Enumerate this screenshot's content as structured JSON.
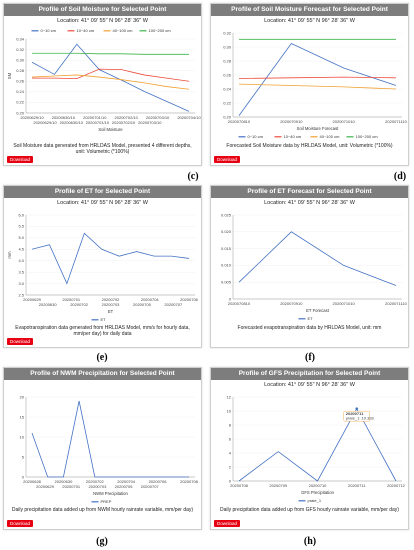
{
  "panels": [
    {
      "id": "c",
      "title": "Profile of Soil Moisture for Selected Point",
      "location": "Location: 41° 09' 55\" N 96° 28' 36\" W",
      "caption": "Soil Moisture data generated from HRLDAS Model, presented 4 different depths, unit: Volumetric (*100%)",
      "download_label": "Download",
      "letter": "(c)",
      "chart_data": {
        "type": "line",
        "xlabel": "Soil Moisture",
        "ylabel": "SM",
        "x_ticks_top": [
          "20200629/10",
          "20200630/10",
          "20200701/10",
          "20200702/10",
          "20200703/10",
          "20200704/10"
        ],
        "x_ticks_bottom": [
          "20200629/10",
          "20200630/10",
          "20200701/10",
          "20200702/10",
          "20200703/10"
        ],
        "ylim": [
          0.2,
          0.34
        ],
        "yticks": [
          "0.34",
          "0.32",
          "0.30",
          "0.28",
          "0.26",
          "0.24",
          "0.22",
          "0.20"
        ],
        "legend": "top",
        "series": [
          {
            "name": "0~10 cm",
            "color": "#4472c4",
            "values": [
              0.296,
              0.273,
              0.33,
              0.282,
              0.262,
              0.241,
              0.222,
              0.203
            ]
          },
          {
            "name": "10~40 cm",
            "color": "#ed4b3c",
            "values": [
              0.266,
              0.266,
              0.265,
              0.283,
              0.282,
              0.272,
              0.266,
              0.26
            ]
          },
          {
            "name": "40~100 cm",
            "color": "#f0a030",
            "values": [
              0.268,
              0.27,
              0.272,
              0.268,
              0.263,
              0.257,
              0.25,
              0.245
            ]
          },
          {
            "name": "100~200 cm",
            "color": "#3cb44b",
            "values": [
              0.313,
              0.313,
              0.313,
              0.312,
              0.312,
              0.311,
              0.311,
              0.311
            ]
          }
        ]
      }
    },
    {
      "id": "d",
      "title": "Profile of Soil Moisture Forecast for Selected Point",
      "location": "Location: 41° 09' 55\" N 96° 28' 36\" W",
      "caption": "Forecasted Soil Moisture data by HRLDAS Model, unit: Volumetric (*100%)",
      "download_label": "Download",
      "letter": "(d)",
      "chart_data": {
        "type": "line",
        "xlabel": "Soil Moisture Forecast",
        "ylabel": "",
        "x_ticks": [
          "2020070810",
          "2020070910",
          "2020071010",
          "2020071110"
        ],
        "ylim": [
          0.2,
          0.32
        ],
        "yticks": [
          "0.32",
          "0.30",
          "0.28",
          "0.26",
          "0.24",
          "0.22",
          "0.20"
        ],
        "legend": "bottom",
        "series": [
          {
            "name": "0~10 cm",
            "color": "#4472c4",
            "values": [
              0.202,
              0.305,
              0.27,
              0.245
            ]
          },
          {
            "name": "10~40 cm",
            "color": "#ed4b3c",
            "values": [
              0.255,
              0.256,
              0.257,
              0.256
            ]
          },
          {
            "name": "40~100 cm",
            "color": "#f0a030",
            "values": [
              0.247,
              0.245,
              0.243,
              0.24
            ]
          },
          {
            "name": "100~200 cm",
            "color": "#3cb44b",
            "values": [
              0.311,
              0.311,
              0.311,
              0.311
            ]
          }
        ]
      }
    },
    {
      "id": "e",
      "title": "Profile of ET for Selected Point",
      "location": "Location: 41° 09' 55\" N 96° 28' 36\" W",
      "caption": "Evapotranspiration data generated from HRLDAS Model, mm/s for hourly data, mm/per day) for daily data",
      "download_label": "Download",
      "letter": "(e)",
      "chart_data": {
        "type": "line",
        "xlabel": "ET",
        "ylabel": "mm",
        "x_ticks_top": [
          "20200629",
          "20200701",
          "20200702",
          "20200704",
          "20200706"
        ],
        "x_ticks_bottom": [
          "20200630",
          "20200702",
          "20200703",
          "20200705",
          "20200707"
        ],
        "ylim": [
          2.5,
          6.0
        ],
        "yticks": [
          "6.0",
          "5.5",
          "5.0",
          "4.5",
          "4.0",
          "3.5",
          "3.0",
          "2.5"
        ],
        "legend": "bottom",
        "series": [
          {
            "name": "ET",
            "color": "#4472c4",
            "values": [
              4.5,
              4.7,
              3.0,
              5.2,
              4.5,
              4.2,
              4.4,
              4.2,
              4.2,
              4.1
            ]
          }
        ]
      }
    },
    {
      "id": "f",
      "title": "Profile of ET Forecast for Selected Point",
      "location": "Location: 41° 09' 55\" N 96° 28' 36\" W",
      "caption": "Forecasted evapotranspiration data by HRLDAS Model, unit: mm",
      "download_label": "",
      "letter": "(f)",
      "chart_data": {
        "type": "line",
        "xlabel": "ET Forecast",
        "ylabel": "",
        "x_ticks": [
          "2020070810",
          "2020070910",
          "2020071010",
          "2020071110"
        ],
        "ylim": [
          0,
          0.025
        ],
        "yticks": [
          "0.025",
          "0.020",
          "0.015",
          "0.010",
          "0.005",
          "0"
        ],
        "legend": "bottom",
        "series": [
          {
            "name": "ET",
            "color": "#4472c4",
            "values": [
              0.005,
              0.02,
              0.01,
              0.004
            ]
          }
        ]
      }
    },
    {
      "id": "g",
      "title": "Profile of NWM Precipitation for Selected Point",
      "location": "",
      "caption": "Daily precipitation data added up from NWM hourly rainrate variable, mm/per day)",
      "download_label": "Download",
      "letter": "(g)",
      "chart_data": {
        "type": "line",
        "xlabel": "NWM Precipitation",
        "ylabel": "",
        "x_ticks_top": [
          "20200628",
          "20200630",
          "20200702",
          "20200704",
          "20200706",
          "20200708"
        ],
        "x_ticks_bottom": [
          "20200629",
          "20200701",
          "20200703",
          "20200705",
          "20200707"
        ],
        "ylim": [
          0,
          20
        ],
        "yticks": [
          "20",
          "15",
          "10",
          "5",
          "0"
        ],
        "legend": "bottom",
        "series": [
          {
            "name": "PREP",
            "color": "#4472c4",
            "values": [
              11.0,
              0,
              0,
              19.0,
              0,
              0,
              0,
              0,
              0,
              0,
              0
            ]
          }
        ]
      }
    },
    {
      "id": "h",
      "title": "Profile of GFS Precipitation for Selected Point",
      "location": "Location: 41° 09' 55\" N 96° 28' 36\" W",
      "caption": "Daily precipitation data added up from GFS hourly rainrate variable, mm/per day)",
      "download_label": "Download",
      "letter": "(h)",
      "tooltip": {
        "date": "20200711",
        "label": "prate_1",
        "value": "10.333"
      },
      "chart_data": {
        "type": "line",
        "xlabel": "GFS Precipitation",
        "ylabel": "",
        "x_ticks": [
          "20200708",
          "20200709",
          "20200710",
          "20200711",
          "20200712"
        ],
        "ylim": [
          0,
          12
        ],
        "yticks": [
          "12",
          "10",
          "8",
          "6",
          "4",
          "2",
          "0"
        ],
        "legend": "bottom",
        "series": [
          {
            "name": "prate_1",
            "color": "#4472c4",
            "values": [
              0,
              4.2,
              0,
              10.333,
              0
            ]
          }
        ]
      }
    }
  ]
}
